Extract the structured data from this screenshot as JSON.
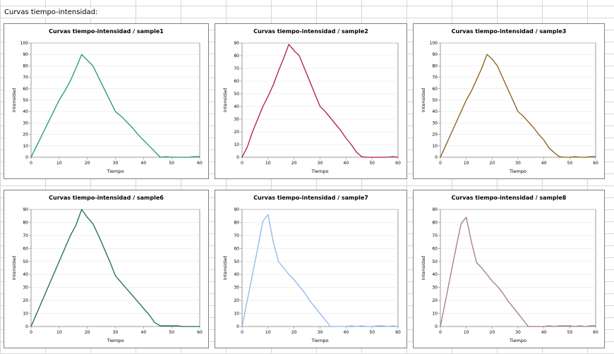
{
  "sheet": {
    "label": "Curvas tiempo-intensidad:"
  },
  "chart_data": [
    {
      "type": "line",
      "title": "Curvas tiempo-intensidad / sample1",
      "xlabel": "Tiempo",
      "ylabel": "Intensidad",
      "xlim": [
        0,
        60
      ],
      "ylim": [
        0,
        100
      ],
      "xticks": [
        0,
        10,
        20,
        30,
        40,
        50,
        60
      ],
      "yticks": [
        0,
        10,
        20,
        30,
        40,
        50,
        60,
        70,
        80,
        90,
        100
      ],
      "color": "#1e9a5a",
      "series": [
        {
          "name": "sample1",
          "x": [
            0,
            2,
            4,
            6,
            8,
            10,
            12,
            14,
            16,
            18,
            20,
            22,
            24,
            26,
            28,
            30,
            32,
            34,
            36,
            38,
            40,
            42,
            44,
            46,
            48,
            50,
            52,
            54,
            56,
            58,
            60
          ],
          "y": [
            0,
            10,
            20,
            30,
            40,
            50,
            58,
            67,
            78,
            90,
            85,
            80,
            70,
            60,
            50,
            40,
            36,
            31,
            26,
            20,
            15,
            10,
            5,
            0,
            0.5,
            0,
            0,
            0,
            0,
            0.5,
            0.5
          ]
        }
      ]
    },
    {
      "type": "line",
      "title": "Curvas tiempo-intensidad / sample2",
      "xlabel": "Tiempo",
      "ylabel": "Intensidad",
      "xlim": [
        0,
        60
      ],
      "ylim": [
        0,
        90
      ],
      "xticks": [
        0,
        10,
        20,
        30,
        40,
        50,
        60
      ],
      "yticks": [
        0,
        10,
        20,
        30,
        40,
        50,
        60,
        70,
        80,
        90
      ],
      "color": "#b0145a",
      "series": [
        {
          "name": "sample2",
          "x": [
            0,
            2,
            4,
            6,
            8,
            10,
            12,
            14,
            16,
            18,
            20,
            22,
            24,
            26,
            28,
            30,
            32,
            34,
            36,
            38,
            40,
            42,
            44,
            46,
            48,
            50,
            52,
            54,
            56,
            58,
            60
          ],
          "y": [
            0,
            8,
            20,
            30,
            40,
            48,
            57,
            68,
            78,
            89,
            84,
            80,
            70,
            60,
            50,
            40,
            36,
            31,
            26,
            21,
            15,
            10,
            4,
            0.5,
            0,
            0,
            0,
            0,
            0,
            0.5,
            0
          ]
        }
      ]
    },
    {
      "type": "line",
      "title": "Curvas tiempo-intensidad / sample3",
      "xlabel": "Tiempo",
      "ylabel": "Intensidad",
      "xlim": [
        0,
        60
      ],
      "ylim": [
        0,
        100
      ],
      "xticks": [
        0,
        10,
        20,
        30,
        40,
        50,
        60
      ],
      "yticks": [
        0,
        10,
        20,
        30,
        40,
        50,
        60,
        70,
        80,
        90,
        100
      ],
      "color": "#8a5a14",
      "series": [
        {
          "name": "sample3",
          "x": [
            0,
            2,
            4,
            6,
            8,
            10,
            12,
            14,
            16,
            18,
            20,
            22,
            24,
            26,
            28,
            30,
            32,
            34,
            36,
            38,
            40,
            42,
            44,
            46,
            48,
            50,
            52,
            54,
            56,
            58,
            60
          ],
          "y": [
            0,
            10,
            20,
            30,
            40,
            50,
            58,
            68,
            78,
            90,
            86,
            80,
            70,
            60,
            50,
            40,
            36,
            31,
            26,
            20,
            15,
            8,
            4,
            0.5,
            0,
            0,
            0.5,
            0,
            0,
            0.5,
            0.5
          ]
        }
      ]
    },
    {
      "type": "line",
      "title": "Curvas tiempo-intensidad / sample6",
      "xlabel": "Tiempo",
      "ylabel": "Intensidad",
      "xlim": [
        0,
        60
      ],
      "ylim": [
        0,
        90
      ],
      "xticks": [
        0,
        10,
        20,
        30,
        40,
        50,
        60
      ],
      "yticks": [
        0,
        10,
        20,
        30,
        40,
        50,
        60,
        70,
        80,
        90
      ],
      "color": "#1a6a50",
      "series": [
        {
          "name": "sample6",
          "x": [
            0,
            2,
            4,
            6,
            8,
            10,
            12,
            14,
            16,
            18,
            20,
            22,
            24,
            26,
            28,
            30,
            32,
            34,
            36,
            38,
            40,
            42,
            44,
            46,
            48,
            50,
            52,
            54,
            56,
            58,
            60
          ],
          "y": [
            0,
            10,
            20,
            30,
            40,
            50,
            60,
            70,
            78,
            90,
            84,
            79,
            70,
            60,
            50,
            39,
            34,
            29,
            24,
            19,
            14,
            9,
            3,
            0.5,
            0.5,
            0.5,
            0.5,
            0,
            0,
            0,
            0
          ]
        }
      ]
    },
    {
      "type": "line",
      "title": "Curvas tiempo-intensidad / sample7",
      "xlabel": "Tiempo",
      "ylabel": "Intensidad",
      "xlim": [
        0,
        60
      ],
      "ylim": [
        0,
        90
      ],
      "xticks": [
        0,
        10,
        20,
        30,
        40,
        50,
        60
      ],
      "yticks": [
        0,
        10,
        20,
        30,
        40,
        50,
        60,
        70,
        80,
        90
      ],
      "color": "#8fb4ee",
      "series": [
        {
          "name": "sample7",
          "x": [
            0,
            2,
            4,
            6,
            8,
            10,
            12,
            14,
            16,
            18,
            20,
            22,
            24,
            26,
            28,
            30,
            32,
            34,
            36,
            38,
            40,
            42,
            44,
            46,
            48,
            50,
            52,
            54,
            56,
            58,
            60
          ],
          "y": [
            0,
            20,
            40,
            60,
            81,
            86,
            65,
            50,
            45,
            40,
            36,
            31,
            26,
            20,
            15,
            10,
            5,
            0,
            0,
            0,
            0,
            0.5,
            0,
            0.5,
            0,
            0,
            0.5,
            0.5,
            0,
            0.5,
            0
          ]
        }
      ]
    },
    {
      "type": "line",
      "title": "Curvas tiempo-intensidad / sample8",
      "xlabel": "Tiempo",
      "ylabel": "Intensidad",
      "xlim": [
        0,
        60
      ],
      "ylim": [
        0,
        90
      ],
      "xticks": [
        0,
        10,
        20,
        30,
        40,
        50,
        60
      ],
      "yticks": [
        0,
        10,
        20,
        30,
        40,
        50,
        60,
        70,
        80,
        90
      ],
      "color": "#a27a80",
      "series": [
        {
          "name": "sample8",
          "x": [
            0,
            2,
            4,
            6,
            8,
            10,
            12,
            14,
            16,
            18,
            20,
            22,
            24,
            26,
            28,
            30,
            32,
            34,
            36,
            38,
            40,
            42,
            44,
            46,
            48,
            50,
            52,
            54,
            56,
            58,
            60
          ],
          "y": [
            0,
            20,
            40,
            60,
            79,
            84,
            65,
            49,
            45,
            40,
            35,
            31,
            26,
            20,
            15,
            10,
            5,
            0,
            0,
            0,
            0,
            0.5,
            0,
            0.5,
            0.5,
            0.5,
            0,
            0.5,
            0,
            0.5,
            0.5
          ]
        }
      ]
    }
  ]
}
